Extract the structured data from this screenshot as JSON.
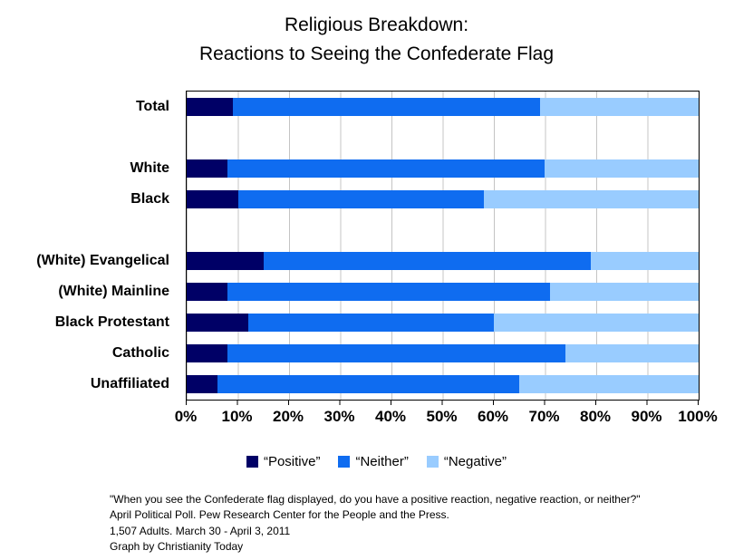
{
  "title": "Religious Breakdown:\nReactions to Seeing the Confederate Flag",
  "chart_data": {
    "type": "bar",
    "orientation": "horizontal",
    "stacked": true,
    "title": "Religious Breakdown: Reactions to Seeing the Confederate Flag",
    "categories": [
      "Total",
      "White",
      "Black",
      "(White) Evangelical",
      "(White) Mainline",
      "Black Protestant",
      "Catholic",
      "Unaffiliated"
    ],
    "series": [
      {
        "name": "“Positive”",
        "color": "#000066",
        "values": [
          9,
          8,
          10,
          15,
          8,
          12,
          8,
          6
        ]
      },
      {
        "name": "“Neither”",
        "color": "#0f6cf0",
        "values": [
          60,
          62,
          48,
          64,
          63,
          48,
          66,
          59
        ]
      },
      {
        "name": "“Negative”",
        "color": "#99ccff",
        "values": [
          31,
          30,
          42,
          21,
          29,
          40,
          26,
          35
        ]
      }
    ],
    "x_ticks": [
      "0%",
      "10%",
      "20%",
      "30%",
      "40%",
      "50%",
      "60%",
      "70%",
      "80%",
      "90%",
      "100%"
    ],
    "xlim": [
      0,
      100
    ],
    "group_gaps_after": [
      0,
      2
    ],
    "grid": "vertical",
    "gridline_color": "#c4c4c4",
    "legend_position": "bottom"
  },
  "footer": {
    "lines": [
      "\"When you see the Confederate flag displayed, do you have a positive reaction, negative reaction, or neither?\"",
      "April Political Poll.  Pew Research Center for the People and the Press.",
      "1,507 Adults.  March 30 - April 3, 2011",
      "Graph by Christianity Today"
    ]
  }
}
